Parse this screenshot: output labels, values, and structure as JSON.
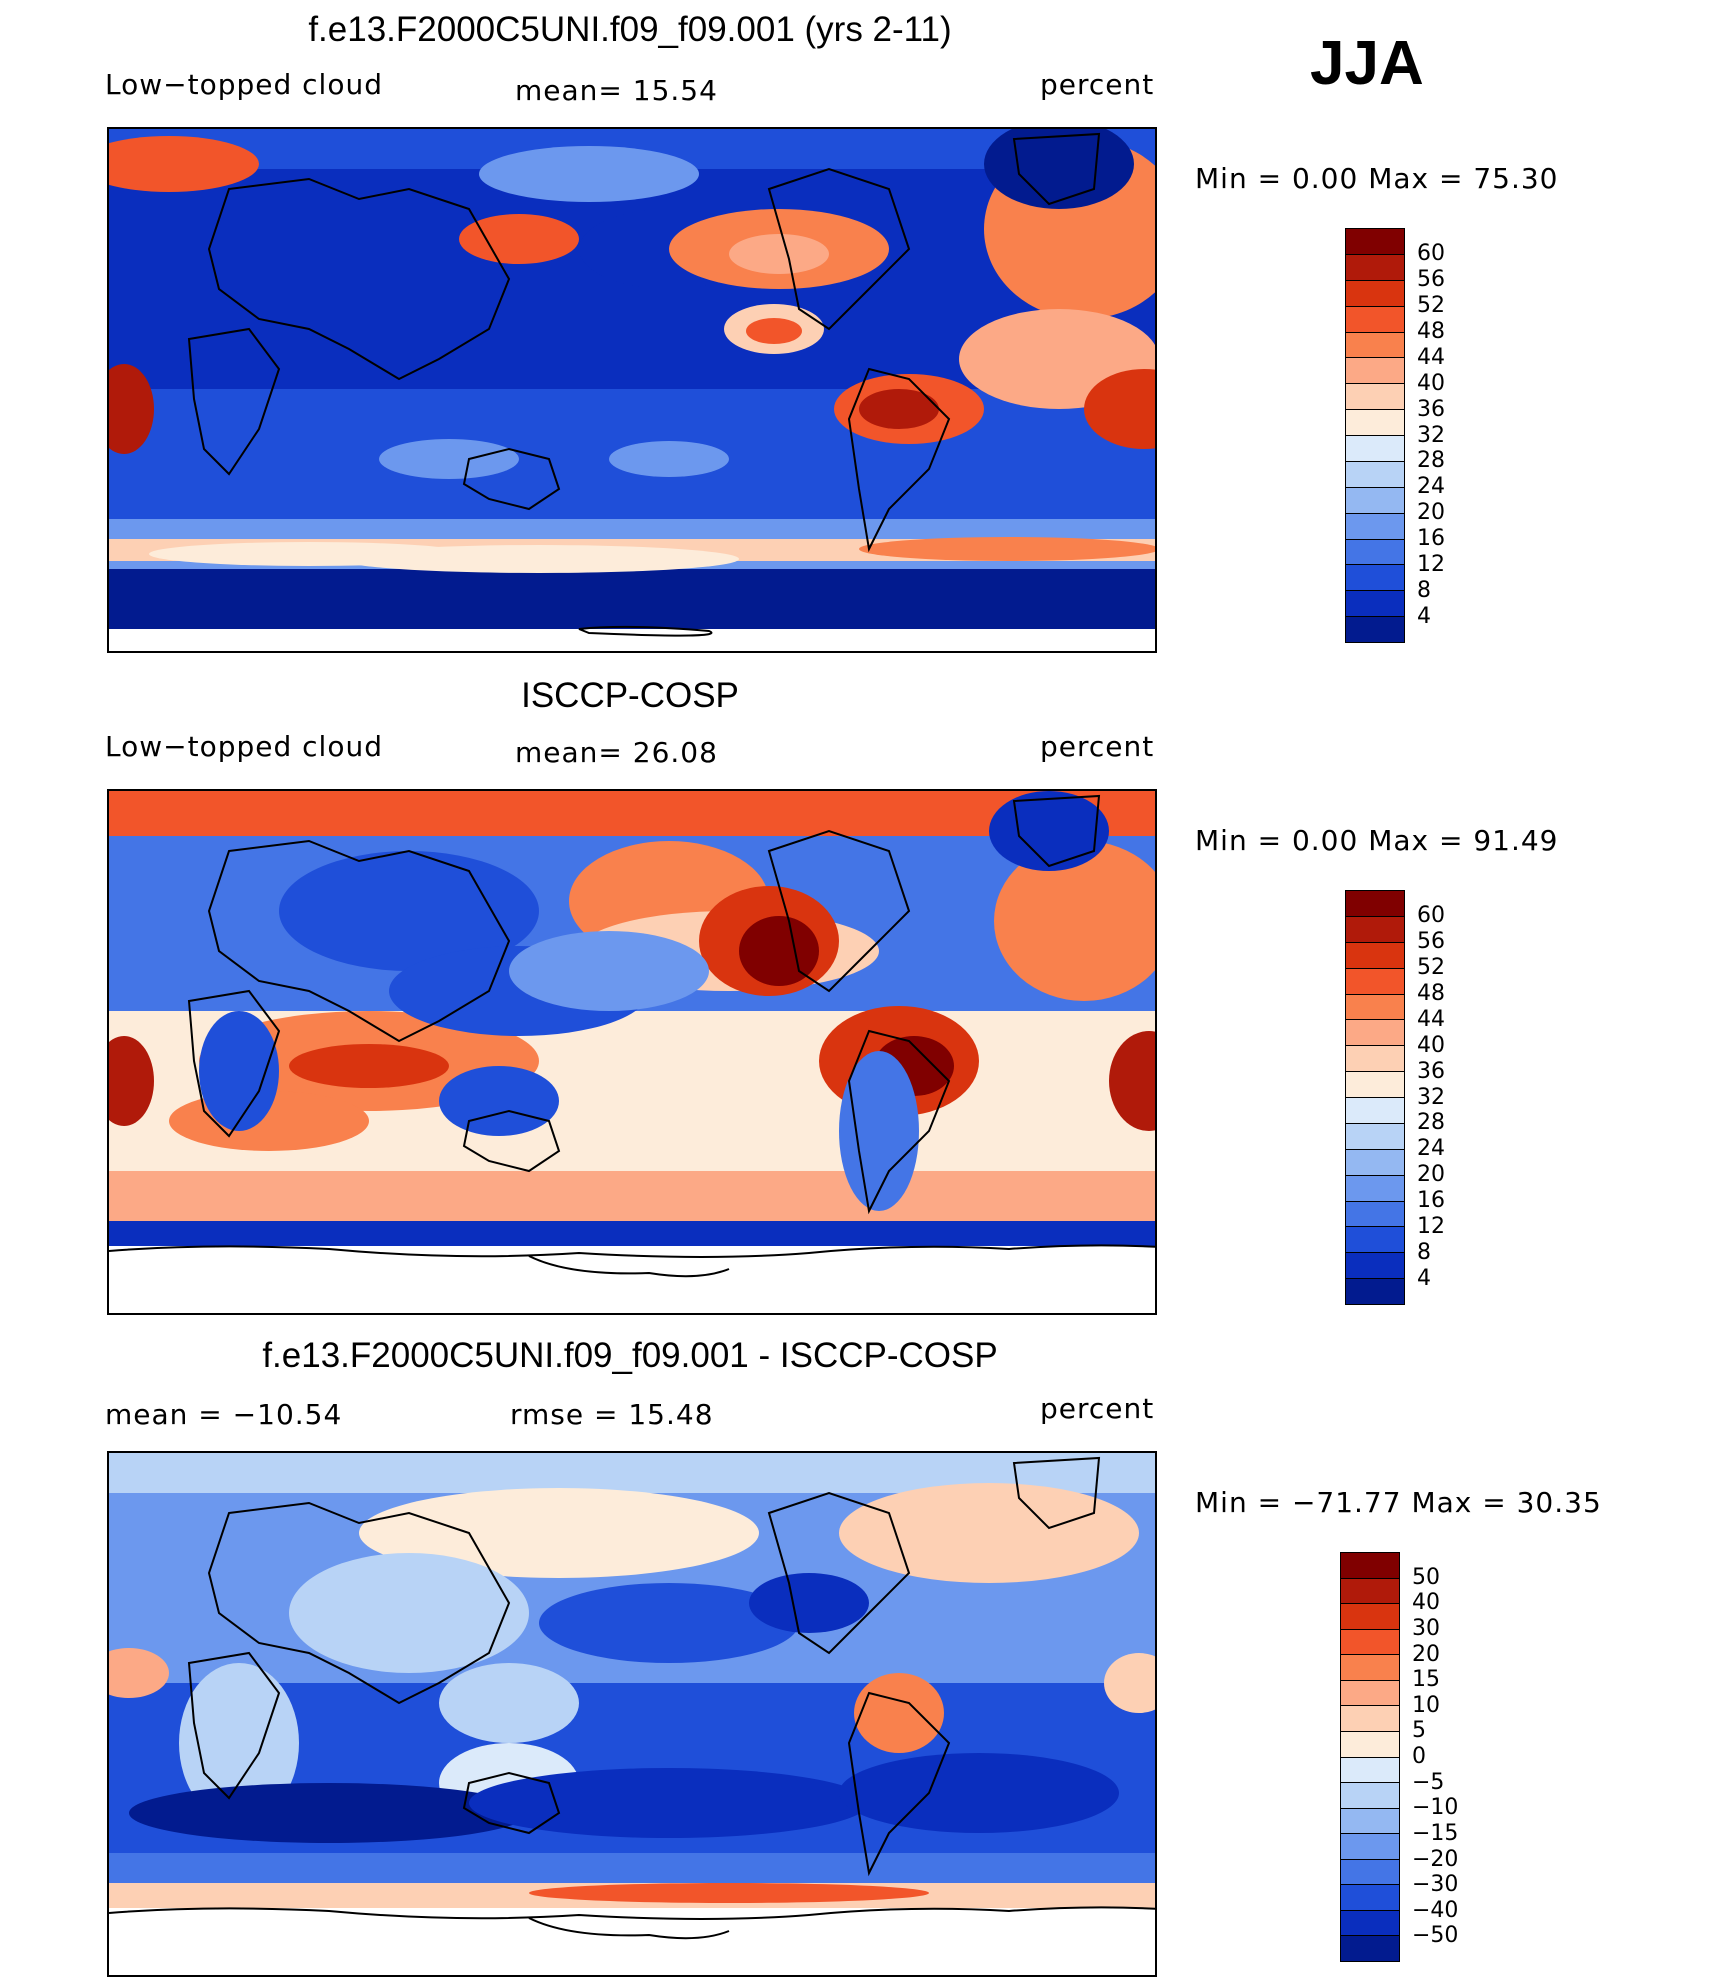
{
  "season": "JJA",
  "panels": [
    {
      "title": "f.e13.F2000C5UNI.f09_f09.001 (yrs 2-11)",
      "left_label": "Low−topped cloud",
      "center_label": "mean=   15.54",
      "right_label": "percent",
      "minmax": "Min  =     0.00  Max  =    75.30",
      "colorbar": {
        "colors": [
          "#800000",
          "#b01a0a",
          "#d9340f",
          "#f2552a",
          "#f9814d",
          "#fca986",
          "#fdd0b4",
          "#fdecda",
          "#dbeafa",
          "#b8d3f6",
          "#94b8f2",
          "#6c98ee",
          "#4475e6",
          "#1f4fd9",
          "#0a2ebe",
          "#021b8f"
        ],
        "labels": [
          "60",
          "56",
          "52",
          "48",
          "44",
          "40",
          "36",
          "32",
          "28",
          "24",
          "20",
          "16",
          "12",
          "8",
          "4"
        ]
      }
    },
    {
      "title": "ISCCP-COSP",
      "left_label": "Low−topped cloud",
      "center_label": "mean=   26.08",
      "right_label": "percent",
      "minmax": "Min  =     0.00  Max  =    91.49",
      "colorbar": {
        "colors": [
          "#800000",
          "#b01a0a",
          "#d9340f",
          "#f2552a",
          "#f9814d",
          "#fca986",
          "#fdd0b4",
          "#fdecda",
          "#dbeafa",
          "#b8d3f6",
          "#94b8f2",
          "#6c98ee",
          "#4475e6",
          "#1f4fd9",
          "#0a2ebe",
          "#021b8f"
        ],
        "labels": [
          "60",
          "56",
          "52",
          "48",
          "44",
          "40",
          "36",
          "32",
          "28",
          "24",
          "20",
          "16",
          "12",
          "8",
          "4"
        ]
      }
    },
    {
      "title": "f.e13.F2000C5UNI.f09_f09.001 - ISCCP-COSP",
      "left_label": "mean  =  −10.54",
      "center_label": "rmse  =    15.48",
      "right_label": "percent",
      "minmax": "Min  = −71.77  Max  =    30.35",
      "colorbar": {
        "colors": [
          "#800000",
          "#b01a0a",
          "#d9340f",
          "#f2552a",
          "#f9814d",
          "#fca986",
          "#fdd0b4",
          "#fdecda",
          "#dbeafa",
          "#b8d3f6",
          "#94b8f2",
          "#6c98ee",
          "#4475e6",
          "#1f4fd9",
          "#0a2ebe",
          "#021b8f"
        ],
        "labels": [
          "50",
          "40",
          "30",
          "20",
          "15",
          "10",
          "5",
          "0",
          "−5",
          "−10",
          "−15",
          "−20",
          "−30",
          "−40",
          "−50"
        ]
      }
    }
  ]
}
